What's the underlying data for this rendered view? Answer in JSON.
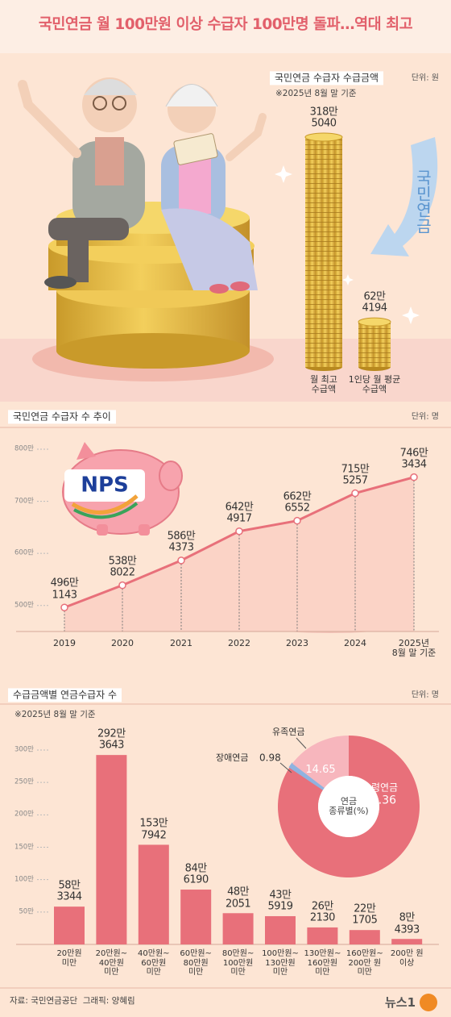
{
  "title": "국민연금 월 100만원 이상 수급자 100만명 돌파…역대 최고",
  "illustration": {
    "arrow_label": "국민연금",
    "nps": "NPS"
  },
  "chart_data": [
    {
      "type": "coins",
      "title": "국민연금 수급자 수급금액",
      "unit": "단위: 원",
      "note": "※2025년 8월 말 기준",
      "categories": [
        "월 최고\n수급액",
        "1인당 월 평균\n수급액"
      ],
      "values": [
        3185040,
        624194
      ],
      "value_labels": [
        "318만\n5040",
        "62만\n4194"
      ],
      "color": "#d9ae3c"
    },
    {
      "type": "line",
      "title": "국민연금 수급자 수 추이",
      "unit": "단위: 명",
      "categories": [
        "2019",
        "2020",
        "2021",
        "2022",
        "2023",
        "2024",
        "2025년\n8월 말 기준"
      ],
      "values": [
        4961143,
        5388022,
        5864373,
        6424917,
        6626552,
        7155257,
        7463434
      ],
      "value_labels": [
        "496만\n1143",
        "538만\n8022",
        "586만\n4373",
        "642만\n4917",
        "662만\n6552",
        "715만\n5257",
        "746만\n3434"
      ],
      "ylim": [
        4500000,
        8000000
      ],
      "yticks": [
        {
          "value": 5000000,
          "label": "500만"
        },
        {
          "value": 6000000,
          "label": "600만"
        },
        {
          "value": 7000000,
          "label": "700만"
        },
        {
          "value": 8000000,
          "label": "800만"
        }
      ],
      "color": "#e8707a"
    },
    {
      "type": "bar",
      "title": "수급금액별 연금수급자 수",
      "unit": "단위: 명",
      "note": "※2025년 8월 말 기준",
      "categories": [
        "20만원\n미만",
        "20만원~\n40만원\n미만",
        "40만원~\n60만원\n미만",
        "60만원~\n80만원\n미만",
        "80만원~\n100만원\n미만",
        "100만원~\n130만원\n미만",
        "130만원~\n160만원\n미만",
        "160만원~\n200만 원\n미만",
        "200만 원\n이상"
      ],
      "values": [
        583344,
        2923643,
        1537942,
        846190,
        482051,
        435919,
        262130,
        221705,
        84393
      ],
      "value_labels": [
        "58만\n3344",
        "292만\n3643",
        "153만\n7942",
        "84만\n6190",
        "48만\n2051",
        "43만\n5919",
        "26만\n2130",
        "22만\n1705",
        "8만\n4393"
      ],
      "ylim": [
        0,
        3000000
      ],
      "yticks": [
        {
          "value": 500000,
          "label": "50만"
        },
        {
          "value": 1000000,
          "label": "100만"
        },
        {
          "value": 1500000,
          "label": "150만"
        },
        {
          "value": 2000000,
          "label": "200만"
        },
        {
          "value": 2500000,
          "label": "250만"
        },
        {
          "value": 3000000,
          "label": "300만"
        }
      ],
      "color": "#e8707a"
    },
    {
      "type": "donut",
      "title": "연금\n종류별(%)",
      "categories": [
        "노령연금",
        "장애연금",
        "유족연금"
      ],
      "values": [
        84.36,
        0.98,
        14.65
      ],
      "colors": [
        "#e8707a",
        "#8fb3e0",
        "#f7b6bd"
      ]
    }
  ],
  "source": "자료: 국민연금공단  그래픽: 양혜림",
  "logo": "뉴스1"
}
